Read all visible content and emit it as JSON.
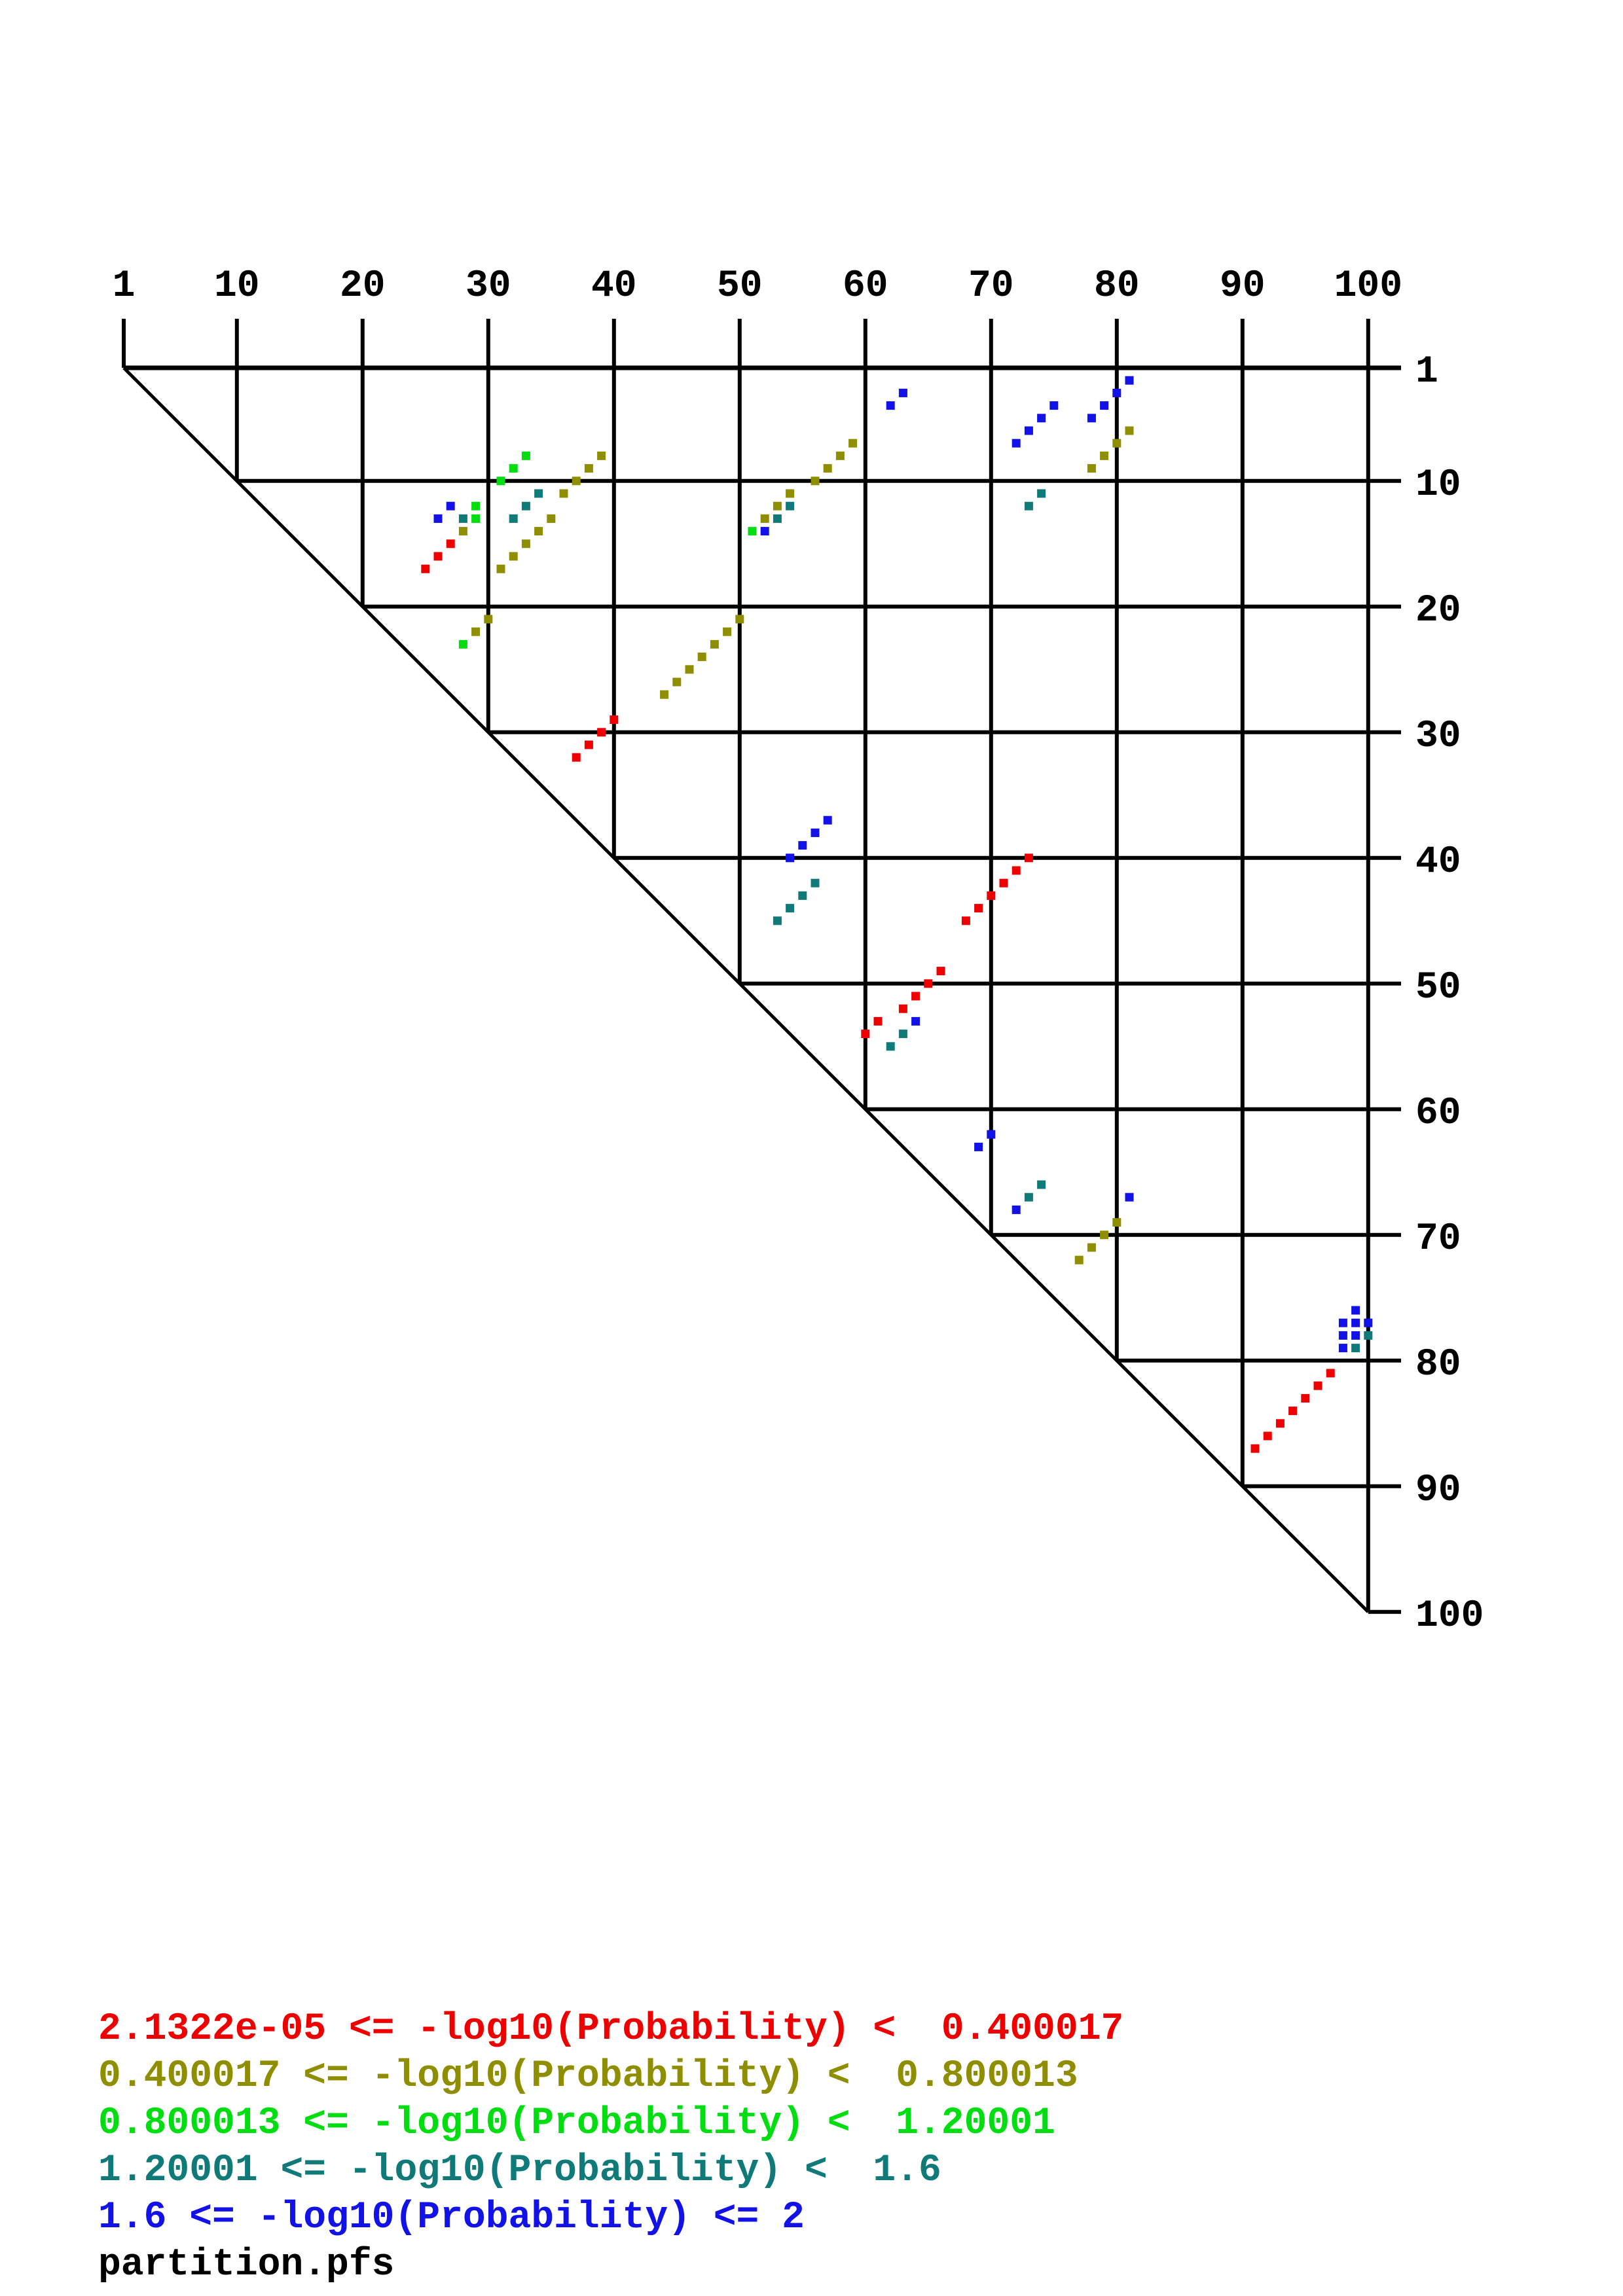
{
  "window": {
    "title": "partition dot plot"
  },
  "chart_data": {
    "type": "scatter",
    "title": "",
    "xlabel": "",
    "ylabel": "",
    "x_ticks": [
      1,
      10,
      20,
      30,
      40,
      50,
      60,
      70,
      80,
      90,
      100
    ],
    "y_ticks": [
      1,
      10,
      20,
      30,
      40,
      50,
      60,
      70,
      80,
      90,
      100
    ],
    "x_range": [
      1,
      100
    ],
    "y_range": [
      1,
      100
    ],
    "grid": true,
    "legend_position": "bottom-left",
    "file_label": "partition.pfs",
    "series": [
      {
        "name": "2.1322e-05 <= -log10(Probability) <  0.400017",
        "color": "#ee0000",
        "points": [
          [
            27,
            15
          ],
          [
            26,
            16
          ],
          [
            25,
            17
          ],
          [
            40,
            29
          ],
          [
            39,
            30
          ],
          [
            38,
            31
          ],
          [
            37,
            32
          ],
          [
            73,
            40
          ],
          [
            72,
            41
          ],
          [
            71,
            42
          ],
          [
            70,
            43
          ],
          [
            69,
            44
          ],
          [
            68,
            45
          ],
          [
            66,
            49
          ],
          [
            65,
            50
          ],
          [
            64,
            51
          ],
          [
            63,
            52
          ],
          [
            61,
            53
          ],
          [
            60,
            54
          ],
          [
            97,
            81
          ],
          [
            96,
            82
          ],
          [
            95,
            83
          ],
          [
            94,
            84
          ],
          [
            93,
            85
          ],
          [
            92,
            86
          ],
          [
            91,
            87
          ]
        ]
      },
      {
        "name": "0.400017 <= -log10(Probability) <  0.800013",
        "color": "#8e8e00",
        "points": [
          [
            39,
            8
          ],
          [
            38,
            9
          ],
          [
            37,
            10
          ],
          [
            36,
            11
          ],
          [
            35,
            13
          ],
          [
            34,
            14
          ],
          [
            33,
            15
          ],
          [
            32,
            16
          ],
          [
            31,
            17
          ],
          [
            28,
            14
          ],
          [
            59,
            7
          ],
          [
            58,
            8
          ],
          [
            57,
            9
          ],
          [
            56,
            10
          ],
          [
            54,
            11
          ],
          [
            53,
            12
          ],
          [
            52,
            13
          ],
          [
            81,
            6
          ],
          [
            80,
            7
          ],
          [
            79,
            8
          ],
          [
            78,
            9
          ],
          [
            50,
            21
          ],
          [
            49,
            22
          ],
          [
            48,
            23
          ],
          [
            47,
            24
          ],
          [
            46,
            25
          ],
          [
            45,
            26
          ],
          [
            44,
            27
          ],
          [
            30,
            21
          ],
          [
            29,
            22
          ],
          [
            80,
            69
          ],
          [
            79,
            70
          ],
          [
            78,
            71
          ],
          [
            77,
            72
          ]
        ]
      },
      {
        "name": "0.800013 <= -log10(Probability) <  1.20001",
        "color": "#00dd11",
        "points": [
          [
            33,
            8
          ],
          [
            32,
            9
          ],
          [
            31,
            10
          ],
          [
            29,
            12
          ],
          [
            29,
            13
          ],
          [
            51,
            14
          ],
          [
            28,
            23
          ]
        ]
      },
      {
        "name": "1.20001 <= -log10(Probability) <  1.6",
        "color": "#0f7a78",
        "points": [
          [
            34,
            11
          ],
          [
            33,
            12
          ],
          [
            32,
            13
          ],
          [
            28,
            13
          ],
          [
            54,
            12
          ],
          [
            53,
            13
          ],
          [
            74,
            11
          ],
          [
            73,
            12
          ],
          [
            56,
            42
          ],
          [
            55,
            43
          ],
          [
            54,
            44
          ],
          [
            53,
            45
          ],
          [
            63,
            54
          ],
          [
            62,
            55
          ],
          [
            74,
            66
          ],
          [
            73,
            67
          ],
          [
            100,
            78
          ],
          [
            99,
            79
          ]
        ]
      },
      {
        "name": "1.6 <= -log10(Probability) <= 2",
        "color": "#1111e8",
        "points": [
          [
            63,
            3
          ],
          [
            62,
            4
          ],
          [
            81,
            2
          ],
          [
            80,
            3
          ],
          [
            79,
            4
          ],
          [
            78,
            5
          ],
          [
            75,
            4
          ],
          [
            74,
            5
          ],
          [
            73,
            6
          ],
          [
            72,
            7
          ],
          [
            27,
            12
          ],
          [
            26,
            13
          ],
          [
            52,
            14
          ],
          [
            57,
            37
          ],
          [
            56,
            38
          ],
          [
            55,
            39
          ],
          [
            54,
            40
          ],
          [
            64,
            53
          ],
          [
            70,
            62
          ],
          [
            69,
            63
          ],
          [
            72,
            68
          ],
          [
            81,
            67
          ],
          [
            99,
            76
          ],
          [
            98,
            77
          ],
          [
            99,
            77
          ],
          [
            100,
            77
          ],
          [
            98,
            78
          ],
          [
            99,
            78
          ],
          [
            98,
            79
          ]
        ]
      }
    ]
  },
  "legend": {
    "lines": [
      {
        "text": "2.1322e-05 <= -log10(Probability) <  0.400017",
        "color": "#ee0000"
      },
      {
        "text": "0.400017 <= -log10(Probability) <  0.800013",
        "color": "#8e8e00"
      },
      {
        "text": "0.800013 <= -log10(Probability) <  1.20001",
        "color": "#00dd11"
      },
      {
        "text": "1.20001 <= -log10(Probability) <  1.6",
        "color": "#0f7a78"
      },
      {
        "text": "1.6 <= -log10(Probability) <= 2",
        "color": "#1111e8"
      },
      {
        "text": "partition.pfs",
        "color": "#000000"
      }
    ]
  }
}
